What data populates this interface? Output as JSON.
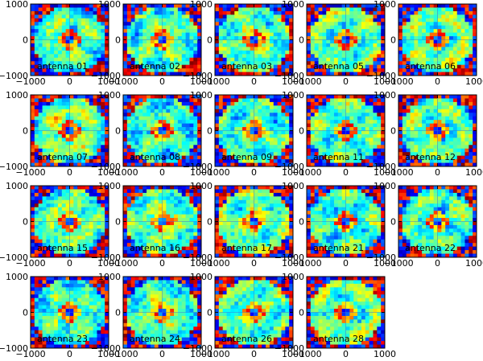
{
  "chart_data": {
    "type": "heatmap",
    "layout": {
      "columns": 5,
      "rows": 4
    },
    "shared_axes": {
      "xlim": [
        -1000,
        1000
      ],
      "ylim": [
        -1000,
        1000
      ],
      "xticks": [
        "−1000",
        "0",
        "1000"
      ],
      "yticks": [
        "1000",
        "0",
        "−1000"
      ]
    },
    "colormap": [
      "#00007f",
      "#0000ff",
      "#007fff",
      "#00ffff",
      "#7fff7f",
      "#ffff00",
      "#ff7f00",
      "#ff0000",
      "#7f0000"
    ],
    "panels": [
      {
        "label": "antenna 01"
      },
      {
        "label": "antenna 02"
      },
      {
        "label": "antenna 03"
      },
      {
        "label": "antenna 05"
      },
      {
        "label": "antenna 06"
      },
      {
        "label": "antenna 07"
      },
      {
        "label": "antenna 08"
      },
      {
        "label": "antenna 09"
      },
      {
        "label": "antenna 11"
      },
      {
        "label": "antenna 12"
      },
      {
        "label": "antenna 15"
      },
      {
        "label": "antenna 16"
      },
      {
        "label": "antenna 17"
      },
      {
        "label": "antenna 21"
      },
      {
        "label": "antenna 22"
      },
      {
        "label": "antenna 23"
      },
      {
        "label": "antenna 24"
      },
      {
        "label": "antenna 26"
      },
      {
        "label": "antenna 28"
      }
    ]
  }
}
